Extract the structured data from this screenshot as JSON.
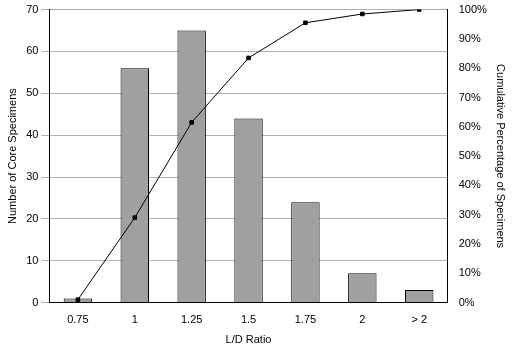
{
  "chart_data": {
    "type": "bar",
    "categories": [
      "0.75",
      "1",
      "1.25",
      "1.5",
      "1.75",
      "2",
      "> 2"
    ],
    "x_label": "L/D Ratio",
    "y_label": "Number of Core Specimens",
    "y2_label": "Cumulative Percentage of Specimens",
    "series": [
      {
        "type": "bar",
        "color": "#a0a0a0",
        "values": [
          1,
          56,
          65,
          44,
          24,
          7,
          3
        ]
      },
      {
        "type": "line",
        "color": "#000000",
        "marker": "square",
        "line_style": "solid",
        "axis": "y2",
        "values": [
          1,
          29,
          61.5,
          83.5,
          95.5,
          98.5,
          100
        ]
      }
    ],
    "ylim": [
      0,
      70
    ],
    "yticks": [
      0,
      10,
      20,
      30,
      40,
      50,
      60,
      70
    ],
    "y2lim": [
      0,
      100
    ],
    "y2ticks": [
      {
        "value": 0,
        "label": "0%"
      },
      {
        "value": 10,
        "label": "10%"
      },
      {
        "value": 20,
        "label": "20%"
      },
      {
        "value": 30,
        "label": "30%"
      },
      {
        "value": 40,
        "label": "40%"
      },
      {
        "value": 50,
        "label": "50%"
      },
      {
        "value": 60,
        "label": "60%"
      },
      {
        "value": 70,
        "label": "70%"
      },
      {
        "value": 80,
        "label": "80%"
      },
      {
        "value": 90,
        "label": "90%"
      },
      {
        "value": 100,
        "label": "100%"
      }
    ],
    "grid": true
  }
}
